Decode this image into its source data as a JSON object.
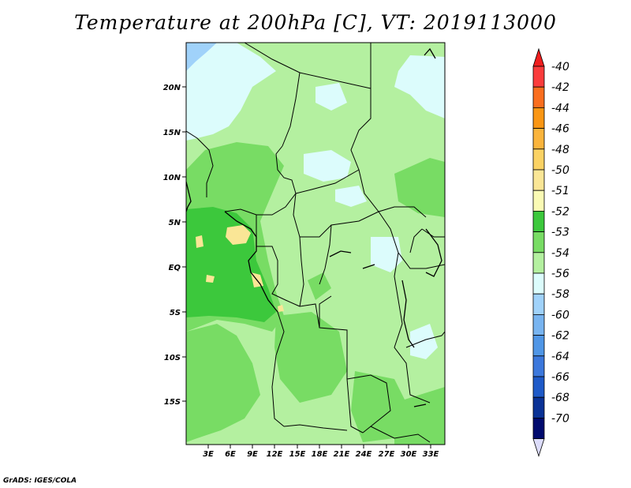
{
  "title": "Temperature at 200hPa [C], VT: 2019113000",
  "credit": "GrADS: IGES/COLA",
  "map": {
    "lat_ticks": [
      "20N",
      "15N",
      "10N",
      "5N",
      "EQ",
      "5S",
      "10S",
      "15S"
    ],
    "lon_ticks": [
      "3E",
      "6E",
      "9E",
      "12E",
      "15E",
      "18E",
      "21E",
      "24E",
      "27E",
      "30E",
      "33E"
    ],
    "fill_colors": {
      "dominant": "#b4f0a0",
      "warm_patch": "#78dc64",
      "warmest": "#3cc83c",
      "cold_patch": "#dcfcfc",
      "coldest": "#a0d2fa",
      "yellow": "#fae696"
    }
  },
  "colorbar": {
    "levels": [
      {
        "label": "-40",
        "color": "#f01e1e"
      },
      {
        "label": "-42",
        "color": "#fa3c3c"
      },
      {
        "label": "-44",
        "color": "#fa6e1e"
      },
      {
        "label": "-46",
        "color": "#fa9614"
      },
      {
        "label": "-48",
        "color": "#fab43c"
      },
      {
        "label": "-50",
        "color": "#fad264"
      },
      {
        "label": "-51",
        "color": "#fae696"
      },
      {
        "label": "-52",
        "color": "#fafab4"
      },
      {
        "label": "-53",
        "color": "#3cc83c"
      },
      {
        "label": "-54",
        "color": "#78dc64"
      },
      {
        "label": "-56",
        "color": "#b4f0a0"
      },
      {
        "label": "-58",
        "color": "#dcfcfc"
      },
      {
        "label": "-60",
        "color": "#a0d2fa"
      },
      {
        "label": "-62",
        "color": "#78b4f0"
      },
      {
        "label": "-64",
        "color": "#5096e6"
      },
      {
        "label": "-66",
        "color": "#3c78dc"
      },
      {
        "label": "-68",
        "color": "#1e5ac8"
      },
      {
        "label": "-70",
        "color": "#0a3296"
      },
      {
        "label": "",
        "color": "#000a6e"
      },
      {
        "label": "",
        "color": "#dcdcfa"
      }
    ]
  }
}
